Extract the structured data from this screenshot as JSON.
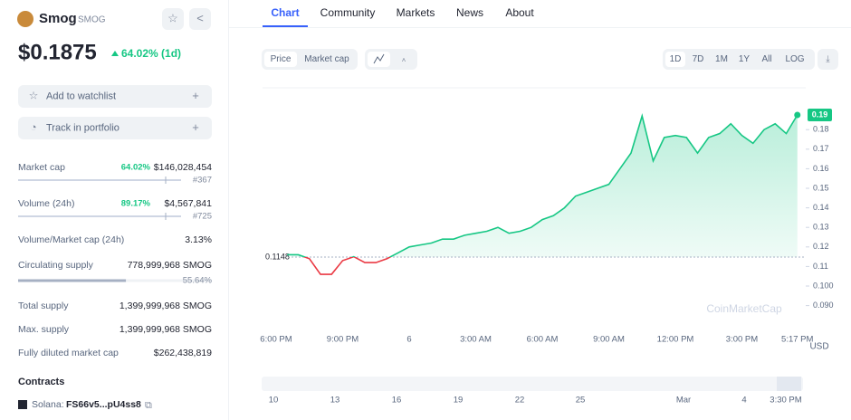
{
  "coin": {
    "name": "Smog",
    "symbol": "SMOG",
    "price": "$0.1875",
    "change": "64.02% (1d)"
  },
  "actions": [
    "Add to watchlist",
    "Track in portfolio"
  ],
  "stats": [
    {
      "label": "Market cap",
      "change": "64.02%",
      "value": "$146,028,454",
      "rank": "#367"
    },
    {
      "label": "Volume (24h)",
      "change": "89.17%",
      "value": "$4,567,841",
      "rank": "#725"
    },
    {
      "label": "Volume/Market cap (24h)",
      "value": "3.13%"
    },
    {
      "label": "Circulating supply",
      "value": "778,999,968 SMOG",
      "share": {
        "value": 55.64,
        "label": "55.64%"
      }
    },
    {
      "label": "Total supply",
      "value": "1,399,999,968 SMOG"
    },
    {
      "label": "Max. supply",
      "value": "1,399,999,968 SMOG"
    },
    {
      "label": "Fully diluted market cap",
      "value": "$262,438,819"
    }
  ],
  "contracts": {
    "title": "Contracts",
    "chain": "Solana:",
    "address": "FS66v5...pU4ss8"
  },
  "tabs": [
    "Chart",
    "Community",
    "Markets",
    "News",
    "About"
  ],
  "toggles": {
    "metrics": [
      "Price",
      "Market cap"
    ],
    "ranges": [
      "1D",
      "7D",
      "1M",
      "1Y",
      "All",
      "LOG"
    ]
  },
  "chart_data": {
    "type": "line",
    "categories": [
      "6:00 PM",
      null,
      null,
      null,
      null,
      null,
      "9:00 PM",
      null,
      null,
      null,
      null,
      null,
      "6",
      null,
      null,
      null,
      null,
      null,
      "3:00 AM",
      null,
      null,
      null,
      null,
      null,
      "6:00 AM",
      null,
      null,
      null,
      null,
      null,
      "9:00 AM",
      null,
      null,
      null,
      null,
      null,
      "12:00 PM",
      null,
      null,
      null,
      null,
      null,
      "3:00 PM",
      null,
      null,
      null,
      null,
      "5:17 PM"
    ],
    "values": [
      null,
      0.116,
      0.116,
      0.114,
      0.106,
      0.106,
      0.113,
      0.115,
      0.112,
      0.112,
      0.114,
      0.117,
      0.12,
      0.121,
      0.122,
      0.124,
      0.124,
      0.126,
      0.127,
      0.128,
      0.13,
      0.127,
      0.128,
      0.13,
      0.134,
      0.136,
      0.14,
      0.146,
      0.148,
      0.15,
      0.152,
      0.16,
      0.168,
      0.187,
      0.164,
      0.176,
      0.177,
      0.176,
      0.168,
      0.176,
      0.178,
      0.183,
      0.177,
      0.173,
      0.18,
      0.183,
      0.178,
      0.1875
    ],
    "color": "#16c784",
    "down_color": "#ea3943",
    "baseline": {
      "value": 0.1148,
      "label": "0.1148"
    },
    "last_label": "0.19",
    "ylim": [
      0.0787,
      0.2014
    ],
    "yticks": [
      {
        "value": 0.09,
        "label": "0.090"
      },
      {
        "value": 0.1,
        "label": "0.100"
      },
      0.11,
      0.12,
      0.13,
      0.14,
      0.15,
      0.16,
      0.17,
      0.18
    ],
    "unit": "USD",
    "watermark": "CoinMarketCap"
  },
  "navigator": {
    "labels": [
      "10",
      "13",
      "16",
      "19",
      "22",
      "25",
      "Mar",
      "4",
      "3:30 PM"
    ]
  }
}
